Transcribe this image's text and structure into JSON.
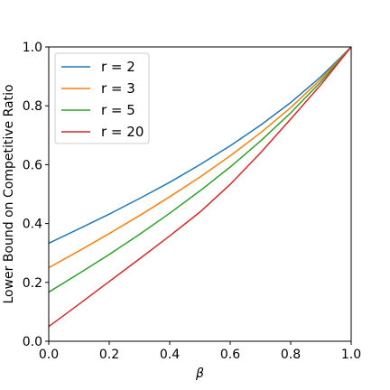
{
  "chart_data": {
    "type": "line",
    "xlabel": "β",
    "ylabel": "Lower Bound on Competitive Ratio",
    "xlim": [
      0.0,
      1.0
    ],
    "ylim": [
      0.0,
      1.0
    ],
    "xticks": [
      "0.0",
      "0.2",
      "0.4",
      "0.6",
      "0.8",
      "1.0"
    ],
    "yticks": [
      "0.0",
      "0.2",
      "0.4",
      "0.6",
      "0.8",
      "1.0"
    ],
    "grid": false,
    "legend_position": "upper-left",
    "x": [
      0.0,
      0.1,
      0.2,
      0.3,
      0.4,
      0.5,
      0.6,
      0.7,
      0.8,
      0.9,
      1.0
    ],
    "series": [
      {
        "name": "r = 2",
        "color": "#1f77b4",
        "values": [
          0.333,
          0.382,
          0.432,
          0.485,
          0.54,
          0.6,
          0.664,
          0.734,
          0.811,
          0.899,
          1.0
        ]
      },
      {
        "name": "r = 3",
        "color": "#ff7f0e",
        "values": [
          0.25,
          0.307,
          0.366,
          0.427,
          0.491,
          0.558,
          0.63,
          0.708,
          0.794,
          0.891,
          1.0
        ]
      },
      {
        "name": "r = 5",
        "color": "#2ca02c",
        "values": [
          0.167,
          0.23,
          0.295,
          0.363,
          0.435,
          0.511,
          0.592,
          0.68,
          0.776,
          0.882,
          1.0
        ]
      },
      {
        "name": "r = 20",
        "color": "#d62728",
        "values": [
          0.05,
          0.126,
          0.203,
          0.28,
          0.358,
          0.439,
          0.533,
          0.64,
          0.755,
          0.872,
          1.0
        ]
      }
    ]
  }
}
